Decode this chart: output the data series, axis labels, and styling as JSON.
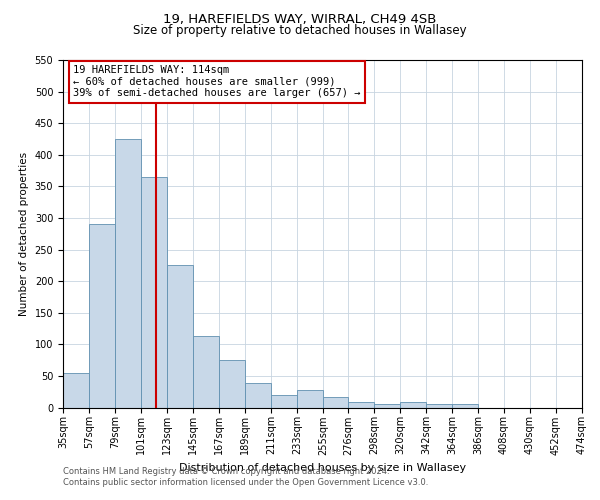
{
  "title": "19, HAREFIELDS WAY, WIRRAL, CH49 4SB",
  "subtitle": "Size of property relative to detached houses in Wallasey",
  "xlabel": "Distribution of detached houses by size in Wallasey",
  "ylabel": "Number of detached properties",
  "bar_color": "#c8d8e8",
  "bar_edge_color": "#6090b0",
  "bar_heights": [
    55,
    290,
    425,
    365,
    225,
    113,
    75,
    38,
    20,
    28,
    17,
    8,
    5,
    8,
    5,
    5,
    0,
    0,
    0,
    0
  ],
  "bar_bins": [
    35,
    57,
    79,
    101,
    123,
    145,
    167,
    189,
    211,
    233,
    255,
    276,
    298,
    320,
    342,
    364,
    386,
    408,
    430,
    452,
    474
  ],
  "tick_labels": [
    "35sqm",
    "57sqm",
    "79sqm",
    "101sqm",
    "123sqm",
    "145sqm",
    "167sqm",
    "189sqm",
    "211sqm",
    "233sqm",
    "255sqm",
    "276sqm",
    "298sqm",
    "320sqm",
    "342sqm",
    "364sqm",
    "386sqm",
    "408sqm",
    "430sqm",
    "452sqm",
    "474sqm"
  ],
  "ylim": [
    0,
    550
  ],
  "yticks": [
    0,
    50,
    100,
    150,
    200,
    250,
    300,
    350,
    400,
    450,
    500,
    550
  ],
  "vline_x": 114,
  "vline_color": "#cc0000",
  "annotation_title": "19 HAREFIELDS WAY: 114sqm",
  "annotation_line1": "← 60% of detached houses are smaller (999)",
  "annotation_line2": "39% of semi-detached houses are larger (657) →",
  "annotation_box_color": "#cc0000",
  "annotation_bg": "#ffffff",
  "footer1": "Contains HM Land Registry data © Crown copyright and database right 2024.",
  "footer2": "Contains public sector information licensed under the Open Government Licence v3.0.",
  "background_color": "#ffffff",
  "grid_color": "#c8d4e0",
  "title_fontsize": 9.5,
  "subtitle_fontsize": 8.5,
  "ylabel_fontsize": 7.5,
  "xlabel_fontsize": 8,
  "tick_fontsize": 7,
  "annotation_fontsize": 7.5,
  "footer_fontsize": 6
}
